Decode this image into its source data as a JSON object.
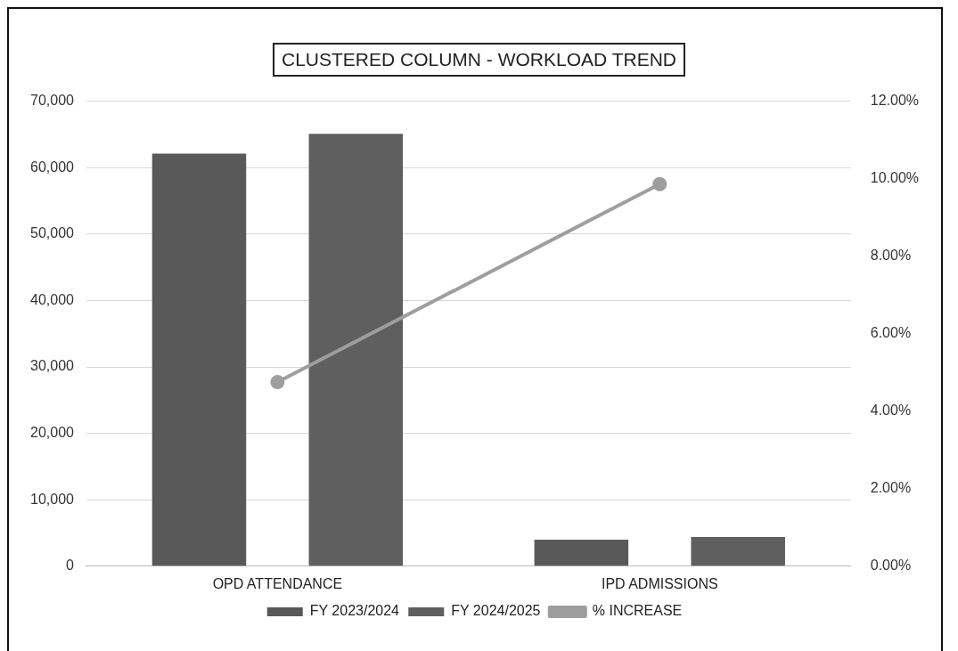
{
  "chart_data": {
    "type": "bar",
    "title": "CLUSTERED COLUMN - WORKLOAD TREND",
    "categories": [
      "OPD ATTENDANCE",
      "IPD ADMISSIONS"
    ],
    "series": [
      {
        "name": "FY 2023/2024",
        "color": "#595959",
        "values": [
          62100,
          4000
        ]
      },
      {
        "name": "FY 2024/2025",
        "color": "#5f5f5f",
        "values": [
          65100,
          4400
        ]
      },
      {
        "name": "% INCREASE",
        "type": "line",
        "axis": "y2",
        "color": "#9e9e9e",
        "values": [
          4.75,
          9.86
        ]
      }
    ],
    "ylim": [
      0,
      70000
    ],
    "yticks": [
      {
        "value": 0,
        "label": "0"
      },
      {
        "value": 10000,
        "label": "10,000"
      },
      {
        "value": 20000,
        "label": "20,000"
      },
      {
        "value": 30000,
        "label": "30,000"
      },
      {
        "value": 40000,
        "label": "40,000"
      },
      {
        "value": 50000,
        "label": "50,000"
      },
      {
        "value": 60000,
        "label": "60,000"
      },
      {
        "value": 70000,
        "label": "70,000"
      }
    ],
    "y2lim": [
      0,
      12
    ],
    "y2ticks": [
      {
        "value": 0,
        "label": "0.00%"
      },
      {
        "value": 2,
        "label": "2.00%"
      },
      {
        "value": 4,
        "label": "4.00%"
      },
      {
        "value": 6,
        "label": "6.00%"
      },
      {
        "value": 8,
        "label": "8.00%"
      },
      {
        "value": 10,
        "label": "10.00%"
      },
      {
        "value": 12,
        "label": "12.00%"
      }
    ],
    "grid": "y",
    "legend": "bottom",
    "marker": "circle",
    "line_style": "solid"
  }
}
